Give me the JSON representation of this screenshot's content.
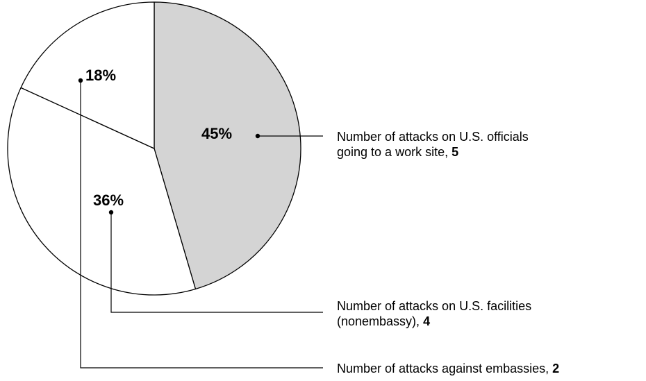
{
  "chart_data": {
    "type": "pie",
    "title": "",
    "slices": [
      {
        "key": "work-site",
        "percent_label": "45%",
        "value": 5,
        "legend_lines": [
          "Number of attacks on U.S. officials",
          "going to a work site, "
        ],
        "value_label": "5",
        "color": "#d4d4d4"
      },
      {
        "key": "facilities",
        "percent_label": "36%",
        "value": 4,
        "legend_lines": [
          "Number of attacks on U.S. facilities",
          "(nonembassy), "
        ],
        "value_label": "4",
        "color": "#ffffff"
      },
      {
        "key": "embassies",
        "percent_label": "18%",
        "value": 2,
        "legend_lines": [
          "Number of attacks against embassies, "
        ],
        "value_label": "2",
        "color": "#ffffff"
      }
    ],
    "start_angle_deg": 0,
    "direction": "clockwise",
    "outline_color": "#000000"
  }
}
